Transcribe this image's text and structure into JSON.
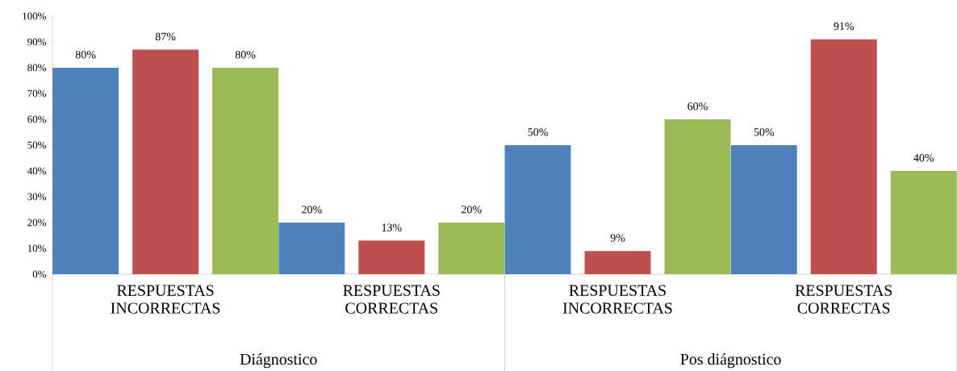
{
  "chart_data": {
    "type": "bar",
    "categories": [
      "RESPUESTAS INCORRECTAS",
      "RESPUESTAS CORRECTAS",
      "RESPUESTAS INCORRECTAS",
      "RESPUESTAS CORRECTAS"
    ],
    "series": [
      {
        "color": "#4f81bd",
        "values": [
          80,
          20,
          50,
          50
        ],
        "value_labels": [
          "80%",
          "20%",
          "50%",
          "50%"
        ]
      },
      {
        "color": "#c0504d",
        "values": [
          87,
          13,
          9,
          91
        ],
        "value_labels": [
          "87%",
          "13%",
          "9%",
          "91%"
        ]
      },
      {
        "color": "#9bbb59",
        "values": [
          80,
          20,
          60,
          40
        ],
        "value_labels": [
          "80%",
          "20%",
          "60%",
          "40%"
        ]
      }
    ],
    "annotations": [
      "Diágnostico",
      "Pos diágnostico"
    ],
    "ylim": [
      0,
      100
    ],
    "yticks": [
      {
        "value": 0,
        "label": "0%"
      },
      {
        "value": 10,
        "label": "10%"
      },
      {
        "value": 20,
        "label": "20%"
      },
      {
        "value": 30,
        "label": "30%"
      },
      {
        "value": 40,
        "label": "40%"
      },
      {
        "value": 50,
        "label": "50%"
      },
      {
        "value": 60,
        "label": "60%"
      },
      {
        "value": 70,
        "label": "70%"
      },
      {
        "value": 80,
        "label": "80%"
      },
      {
        "value": 90,
        "label": "90%"
      },
      {
        "value": 100,
        "label": "100%"
      }
    ]
  }
}
